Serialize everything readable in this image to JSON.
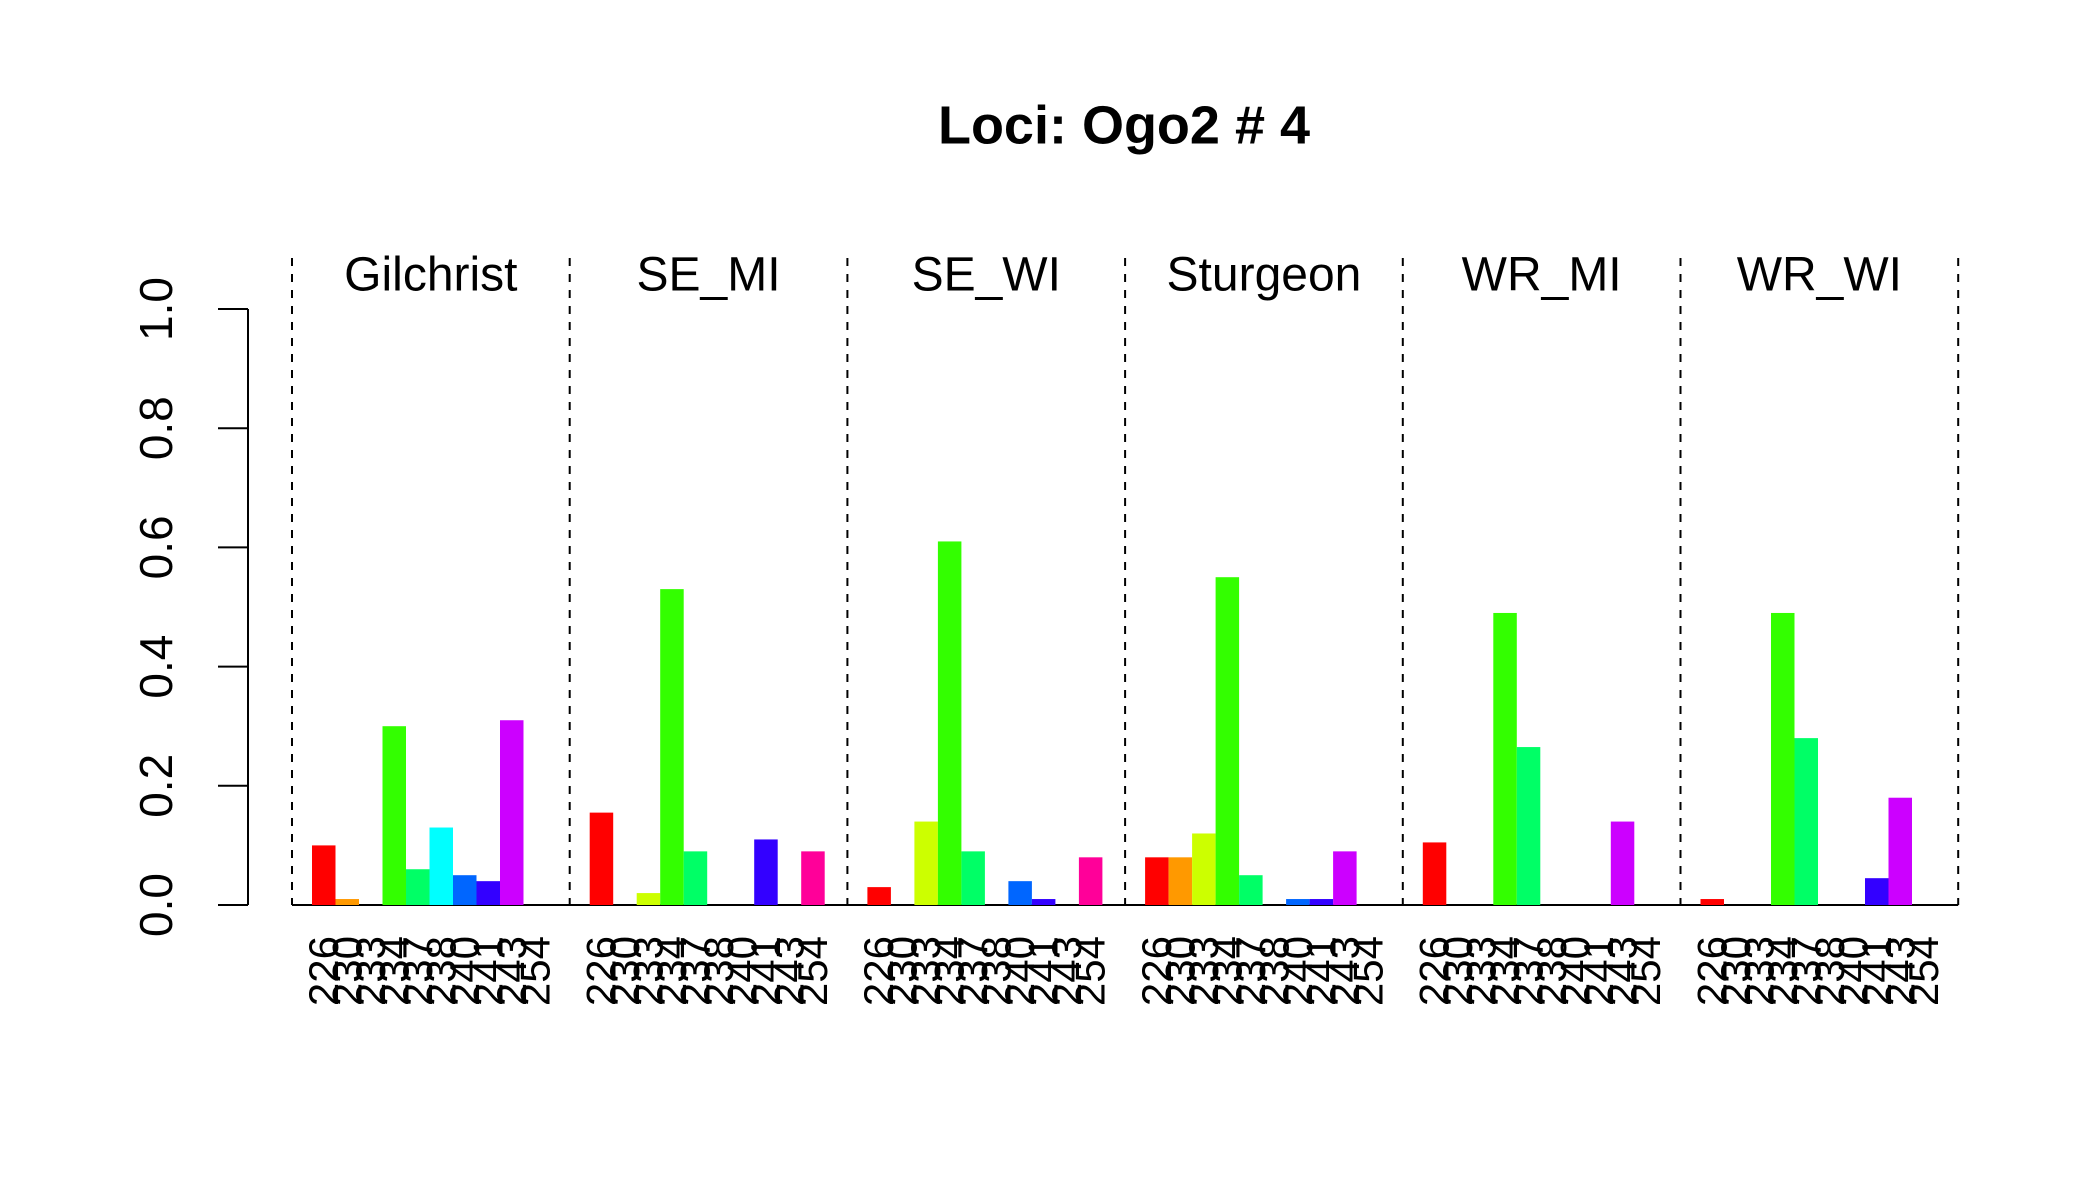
{
  "chart_data": {
    "type": "bar",
    "title": "Loci: Ogo2 # 4",
    "categories": [
      "226",
      "230",
      "233",
      "234",
      "237",
      "238",
      "240",
      "241",
      "243",
      "254"
    ],
    "colors": [
      "#FF0000",
      "#FF9900",
      "#CCFF00",
      "#33FF00",
      "#00FF66",
      "#00FFFF",
      "#0066FF",
      "#3300FF",
      "#CC00FF",
      "#FF0099"
    ],
    "groups": [
      {
        "name": "Gilchrist",
        "values": [
          0.1,
          0.01,
          0,
          0.3,
          0.06,
          0.13,
          0.05,
          0.04,
          0.31,
          0
        ]
      },
      {
        "name": "SE_MI",
        "values": [
          0.155,
          0,
          0.02,
          0.53,
          0.09,
          0,
          0,
          0.11,
          0,
          0.09
        ]
      },
      {
        "name": "SE_WI",
        "values": [
          0.03,
          0,
          0.14,
          0.61,
          0.09,
          0,
          0.04,
          0.01,
          0,
          0.08
        ]
      },
      {
        "name": "Sturgeon",
        "values": [
          0.08,
          0.08,
          0.12,
          0.55,
          0.05,
          0,
          0.01,
          0.01,
          0.09,
          0
        ]
      },
      {
        "name": "WR_MI",
        "values": [
          0.105,
          0,
          0,
          0.49,
          0.265,
          0,
          0,
          0,
          0.14,
          0
        ]
      },
      {
        "name": "WR_WI",
        "values": [
          0.01,
          0,
          0,
          0.49,
          0.28,
          0,
          0,
          0.045,
          0.18,
          0
        ]
      }
    ],
    "ylim": [
      0,
      1
    ],
    "yticks": [
      {
        "value": 0,
        "label": "0.0"
      },
      0.2,
      0.4,
      0.6,
      0.8,
      {
        "value": 1,
        "label": "1.0"
      }
    ]
  }
}
